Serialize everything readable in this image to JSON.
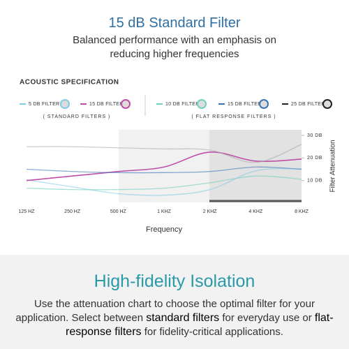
{
  "header": {
    "title": "15 dB Standard Filter",
    "subtitle": "Balanced performance with an emphasis on reducing higher frequencies"
  },
  "chart_data": {
    "type": "line",
    "section_label": "ACOUSTIC SPECIFICATION",
    "standard_label": "( STANDARD FILTERS )",
    "flat_label": "( FLAT RESPONSE FILTERS )",
    "categories": [
      "125 HZ",
      "250 HZ",
      "500 HZ",
      "1 KHZ",
      "2 KHZ",
      "4 KHZ",
      "8 KHZ"
    ],
    "series": [
      {
        "name": "5 DB FILTER",
        "color": "#7fcbe6",
        "values": [
          10.3,
          7.2,
          4.2,
          3.5,
          6,
          14.3,
          15.2
        ]
      },
      {
        "name": "15 DB FILTER",
        "color": "#c04ea8",
        "values": [
          10,
          12,
          14,
          16,
          22.6,
          18.6,
          19.5
        ]
      },
      {
        "name": "10 DB FILTER",
        "color": "#6fcfc0",
        "values": [
          6.6,
          6,
          6,
          6.6,
          9,
          12,
          10.6
        ]
      },
      {
        "name": "15 DB FILTER",
        "color": "#3a74b8",
        "values": [
          15,
          14,
          13.5,
          13.5,
          14,
          16,
          15
        ]
      },
      {
        "name": "25 DB FILTER",
        "color": "#222222",
        "values": [
          25,
          25,
          24.5,
          24,
          23.5,
          18,
          26
        ]
      }
    ],
    "ylim": [
      0,
      32
    ],
    "yticks": [
      {
        "value": 10,
        "label": "10 DB"
      },
      {
        "value": 20,
        "label": "20 DB"
      },
      {
        "value": 30,
        "label": "30 DB"
      }
    ],
    "x_label": "Frequency",
    "y_label": "Filter Attenuation"
  },
  "footer": {
    "title": "High-fidelity Isolation",
    "text": [
      "Use the attenuation chart to choose the optimal filter for your application. Select between ",
      "standard filters",
      " for everyday use or ",
      "flat-response filters",
      " for fidelity-critical applications."
    ]
  }
}
